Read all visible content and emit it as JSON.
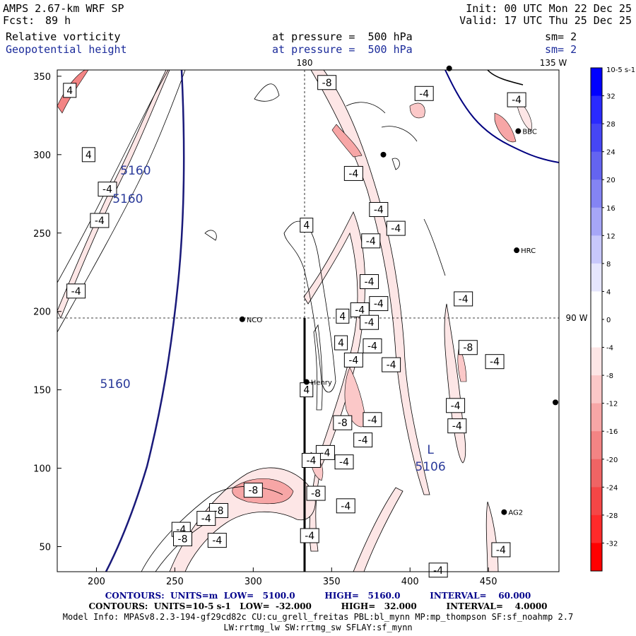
{
  "header": {
    "model": "AMPS 2.67-km WRF SP",
    "fcst_label": "Fcst:",
    "fcst_value": "89 h",
    "init": "Init: 00 UTC Mon 22 Dec 25",
    "valid": "Valid: 17 UTC Thu 25 Dec 25",
    "field1": {
      "name": "Relative vorticity",
      "level": "at pressure =  500 hPa",
      "smooth": "sm= 2"
    },
    "field2": {
      "name": "Geopotential height",
      "level": "at pressure =  500 hPa",
      "smooth": "sm= 2"
    }
  },
  "map": {
    "x_ticks": [
      "200",
      "250",
      "300",
      "350",
      "400",
      "450"
    ],
    "y_ticks": [
      "50",
      "100",
      "150",
      "200",
      "250",
      "300",
      "350"
    ],
    "meridian_labels": [
      "180",
      "135 W"
    ],
    "parallel_labels": [
      "90 W"
    ],
    "stations": [
      {
        "name": "NCO",
        "x": 293,
        "y": 195
      },
      {
        "name": "Henry",
        "x": 334,
        "y": 155
      },
      {
        "name": "HRC",
        "x": 468,
        "y": 239
      },
      {
        "name": "AG2",
        "x": 460,
        "y": 72
      },
      {
        "name": "BBC",
        "x": 469,
        "y": 315
      },
      {
        "name": "",
        "x": 383,
        "y": 300
      },
      {
        "name": "",
        "x": 495,
        "y": 142
      },
      {
        "name": "",
        "x": 425,
        "y": 355
      }
    ],
    "height_labels": [
      {
        "text": "5160",
        "x": 225,
        "y": 290
      },
      {
        "text": "5160",
        "x": 220,
        "y": 272
      },
      {
        "text": "5160",
        "x": 212,
        "y": 154
      }
    ],
    "low": {
      "symbol": "L",
      "value": "5106",
      "x": 413,
      "y": 103
    },
    "vort_labels": [
      {
        "text": "4",
        "x": 183,
        "y": 341
      },
      {
        "text": "4",
        "x": 195,
        "y": 300
      },
      {
        "text": "-4",
        "x": 207,
        "y": 278
      },
      {
        "text": "-4",
        "x": 202,
        "y": 258
      },
      {
        "text": "-4",
        "x": 187,
        "y": 213
      },
      {
        "text": "-8",
        "x": 347,
        "y": 346
      },
      {
        "text": "-4",
        "x": 409,
        "y": 339
      },
      {
        "text": "-4",
        "x": 468,
        "y": 335
      },
      {
        "text": "-4",
        "x": 364,
        "y": 288
      },
      {
        "text": "-4",
        "x": 380,
        "y": 265
      },
      {
        "text": "-4",
        "x": 391,
        "y": 253
      },
      {
        "text": "-4",
        "x": 375,
        "y": 245
      },
      {
        "text": "-4",
        "x": 374,
        "y": 219
      },
      {
        "text": "-4",
        "x": 380,
        "y": 205
      },
      {
        "text": "-4",
        "x": 368,
        "y": 201
      },
      {
        "text": "-4",
        "x": 374,
        "y": 193
      },
      {
        "text": "-4",
        "x": 376,
        "y": 178
      },
      {
        "text": "-4",
        "x": 388,
        "y": 166
      },
      {
        "text": "-4",
        "x": 364,
        "y": 169
      },
      {
        "text": "-8",
        "x": 357,
        "y": 129
      },
      {
        "text": "-4",
        "x": 376,
        "y": 131
      },
      {
        "text": "-4",
        "x": 370,
        "y": 118
      },
      {
        "text": "-4",
        "x": 346,
        "y": 110
      },
      {
        "text": "-4",
        "x": 358,
        "y": 104
      },
      {
        "text": "-4",
        "x": 359,
        "y": 76
      },
      {
        "text": "-4",
        "x": 434,
        "y": 208
      },
      {
        "text": "-8",
        "x": 437,
        "y": 177
      },
      {
        "text": "-4",
        "x": 454,
        "y": 168
      },
      {
        "text": "-4",
        "x": 429,
        "y": 140
      },
      {
        "text": "-4",
        "x": 430,
        "y": 127
      },
      {
        "text": "-4",
        "x": 458,
        "y": 48
      },
      {
        "text": "-4",
        "x": 418,
        "y": 35
      },
      {
        "text": "4",
        "x": 334,
        "y": 255
      },
      {
        "text": "4",
        "x": 357,
        "y": 197
      },
      {
        "text": "4",
        "x": 356,
        "y": 180
      },
      {
        "text": "4",
        "x": 334,
        "y": 150
      },
      {
        "text": "-8",
        "x": 300,
        "y": 86
      },
      {
        "text": "-8",
        "x": 278,
        "y": 73
      },
      {
        "text": "-8",
        "x": 340,
        "y": 84
      },
      {
        "text": "-4",
        "x": 337,
        "y": 105
      },
      {
        "text": "-4",
        "x": 270,
        "y": 68
      },
      {
        "text": "-4",
        "x": 254,
        "y": 61
      },
      {
        "text": "-8",
        "x": 255,
        "y": 55
      },
      {
        "text": "-4",
        "x": 277,
        "y": 54
      },
      {
        "text": "-4",
        "x": 336,
        "y": 57
      }
    ]
  },
  "colorbar": {
    "unit": "10-5 s-1",
    "labels": [
      "32",
      "28",
      "24",
      "20",
      "16",
      "12",
      "8",
      "4",
      "0",
      "-4",
      "-8",
      "-12",
      "-16",
      "-20",
      "-24",
      "-28",
      "-32"
    ],
    "colors": [
      "#0000ff",
      "#2a2aff",
      "#4646f5",
      "#6464f0",
      "#8484f3",
      "#a6a6f7",
      "#c8c8fb",
      "#e6e6fd",
      "#ffffff",
      "#ffffff",
      "#fde6e6",
      "#fbc8c8",
      "#f7a6a6",
      "#f38484",
      "#f06464",
      "#f54646",
      "#ff2a2a",
      "#ff0000"
    ]
  },
  "footer": {
    "line1": "CONTOURS:  UNITS=m  LOW=   5100.0          HIGH=   5160.0          INTERVAL=    60.000",
    "line2": "CONTOURS:  UNITS=10-5 s-1   LOW=  -32.000          HIGH=   32.000          INTERVAL=    4.0000",
    "line3": "Model Info: MPASv8.2.3-194-gf29cd82c CU:cu_grell_freitas PBL:bl_mynn MP:mp_thompson SF:sf_noahmp 2.7",
    "line4": "LW:rrtmg_lw SW:rrtmg_sw SFLAY:sf_mynn"
  }
}
